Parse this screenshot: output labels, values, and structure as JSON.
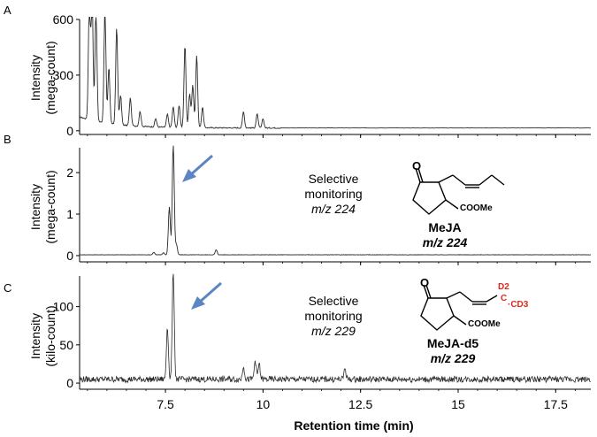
{
  "chart_data": [
    {
      "type": "line",
      "panel_label": "A",
      "ylabel": [
        "Intensity",
        "(mega-count)"
      ],
      "yticks": [
        0,
        300,
        600
      ],
      "xlim": [
        5.3,
        18.4
      ],
      "ylim": [
        -20,
        600
      ],
      "baseline": 15,
      "peaks": [
        {
          "x": 5.55,
          "y": 640
        },
        {
          "x": 5.62,
          "y": 660
        },
        {
          "x": 5.72,
          "y": 600
        },
        {
          "x": 5.95,
          "y": 620
        },
        {
          "x": 6.05,
          "y": 300
        },
        {
          "x": 6.25,
          "y": 520
        },
        {
          "x": 6.35,
          "y": 160
        },
        {
          "x": 6.6,
          "y": 150
        },
        {
          "x": 6.85,
          "y": 80
        },
        {
          "x": 7.25,
          "y": 45
        },
        {
          "x": 7.55,
          "y": 70
        },
        {
          "x": 7.7,
          "y": 110
        },
        {
          "x": 7.85,
          "y": 120
        },
        {
          "x": 8.0,
          "y": 445
        },
        {
          "x": 8.12,
          "y": 180
        },
        {
          "x": 8.2,
          "y": 230
        },
        {
          "x": 8.3,
          "y": 390
        },
        {
          "x": 8.45,
          "y": 110
        },
        {
          "x": 9.5,
          "y": 90
        },
        {
          "x": 9.85,
          "y": 75
        },
        {
          "x": 10.0,
          "y": 50
        }
      ]
    },
    {
      "type": "line",
      "panel_label": "B",
      "ylabel": [
        "Intensity",
        "(mega-count)"
      ],
      "yticks": [
        0,
        1,
        2
      ],
      "xlim": [
        5.3,
        18.4
      ],
      "ylim": [
        -0.15,
        2.6
      ],
      "baseline": 0.02,
      "peaks": [
        {
          "x": 7.6,
          "y": 1.15
        },
        {
          "x": 7.7,
          "y": 2.7
        },
        {
          "x": 7.78,
          "y": 0.25
        },
        {
          "x": 8.8,
          "y": 0.12
        },
        {
          "x": 7.2,
          "y": 0.06
        },
        {
          "x": 7.45,
          "y": 0.05
        }
      ],
      "annotation": {
        "lines": [
          "Selective",
          "monitoring",
          "m/z 224"
        ],
        "compound": "MeJA",
        "compound_mz": "m/z 224",
        "structure_label": "COOMe"
      }
    },
    {
      "type": "line",
      "panel_label": "C",
      "ylabel": [
        "Intensity",
        "(kilo-count)"
      ],
      "yticks": [
        0,
        50,
        100
      ],
      "xlim": [
        5.3,
        18.4
      ],
      "ylim": [
        -8,
        140
      ],
      "baseline": 5,
      "noise": 4,
      "peaks": [
        {
          "x": 7.55,
          "y": 70
        },
        {
          "x": 7.7,
          "y": 145
        },
        {
          "x": 9.5,
          "y": 18
        },
        {
          "x": 9.8,
          "y": 25
        },
        {
          "x": 9.9,
          "y": 20
        },
        {
          "x": 12.1,
          "y": 15
        }
      ],
      "annotation": {
        "lines": [
          "Selective",
          "monitoring",
          "m/z 229"
        ],
        "compound": "MeJA-d5",
        "compound_mz": "m/z 229",
        "structure_label": "COOMe",
        "label_d2": "D2",
        "label_c": "C",
        "label_cd3": "·CD3",
        "label_color": "#e0281e"
      }
    }
  ],
  "xaxis": {
    "xlabel": "Retention time (min)",
    "ticks": [
      7.5,
      10,
      12.5,
      15,
      17.5
    ],
    "tick_labels": [
      "7.5",
      "10",
      "12.5",
      "15",
      "17.5"
    ]
  },
  "arrow_color": "#5b86c3"
}
